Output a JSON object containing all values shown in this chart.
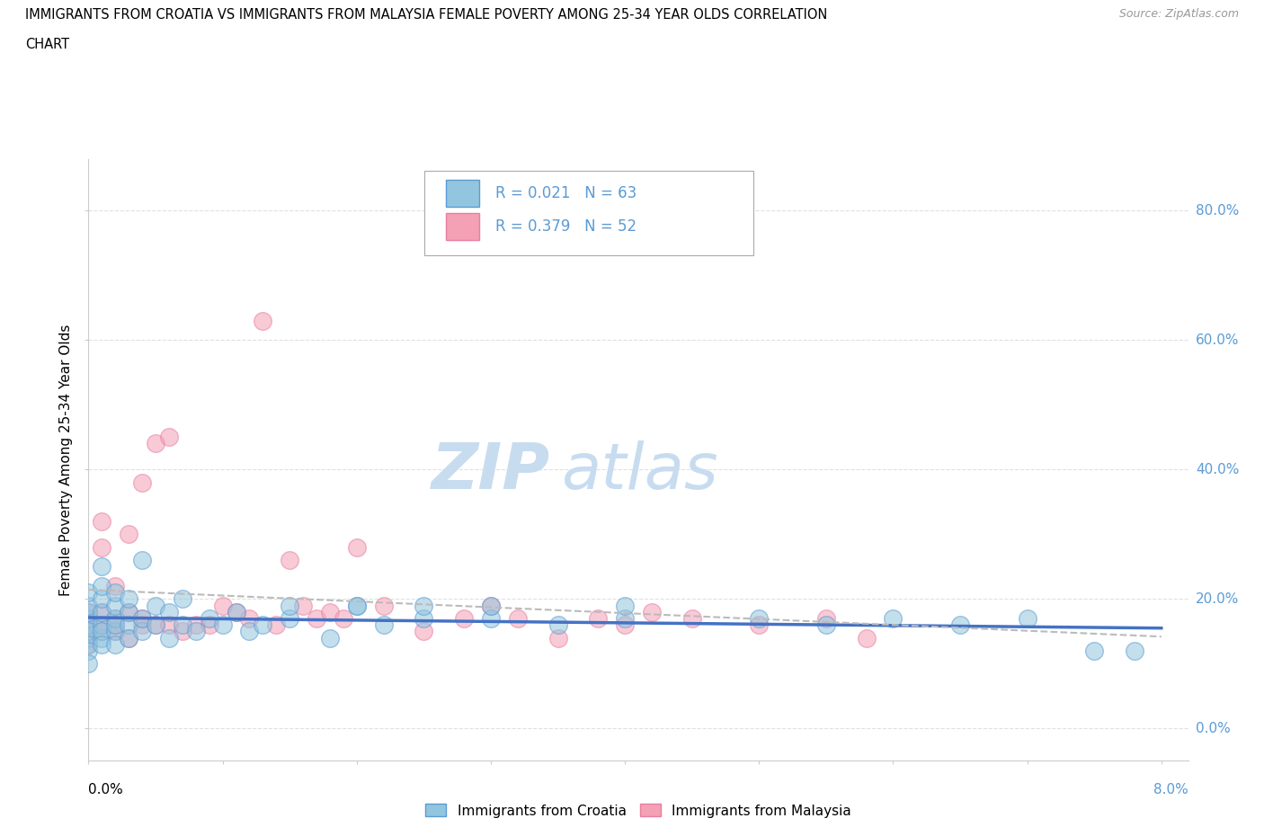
{
  "title_line1": "IMMIGRANTS FROM CROATIA VS IMMIGRANTS FROM MALAYSIA FEMALE POVERTY AMONG 25-34 YEAR OLDS CORRELATION",
  "title_line2": "CHART",
  "source": "Source: ZipAtlas.com",
  "ylabel": "Female Poverty Among 25-34 Year Olds",
  "ytick_values": [
    0.0,
    0.2,
    0.4,
    0.6,
    0.8
  ],
  "ytick_labels": [
    "0.0%",
    "20.0%",
    "40.0%",
    "60.0%",
    "80.0%"
  ],
  "xtick_values": [
    0.0,
    0.01,
    0.02,
    0.03,
    0.04,
    0.05,
    0.06,
    0.07,
    0.08
  ],
  "color_croatia": "#92C5DE",
  "color_croatia_edge": "#5B9BD5",
  "color_malaysia": "#F4A0B5",
  "color_malaysia_edge": "#E87FA0",
  "color_trend_croatia": "#4472C4",
  "color_trend_malaysia": "#E8606A",
  "color_trend_malaysia_dash": "#BBBBBB",
  "right_label_color": "#5B9BD5",
  "watermark_color": "#C8DCF0",
  "background_color": "#FFFFFF",
  "grid_color": "#E0E0E0",
  "croatia_x": [
    0.0,
    0.0,
    0.0,
    0.0,
    0.0,
    0.0,
    0.0,
    0.0,
    0.0,
    0.0,
    0.001,
    0.001,
    0.001,
    0.001,
    0.001,
    0.001,
    0.001,
    0.001,
    0.002,
    0.002,
    0.002,
    0.002,
    0.002,
    0.002,
    0.003,
    0.003,
    0.003,
    0.003,
    0.004,
    0.004,
    0.004,
    0.005,
    0.005,
    0.006,
    0.006,
    0.007,
    0.007,
    0.008,
    0.009,
    0.01,
    0.011,
    0.012,
    0.013,
    0.015,
    0.018,
    0.02,
    0.022,
    0.025,
    0.03,
    0.035,
    0.04,
    0.05,
    0.055,
    0.06,
    0.065,
    0.07,
    0.075,
    0.078,
    0.015,
    0.02,
    0.025,
    0.03,
    0.04
  ],
  "croatia_y": [
    0.14,
    0.16,
    0.17,
    0.18,
    0.15,
    0.13,
    0.12,
    0.19,
    0.21,
    0.1,
    0.14,
    0.16,
    0.18,
    0.2,
    0.15,
    0.13,
    0.22,
    0.25,
    0.15,
    0.17,
    0.16,
    0.19,
    0.13,
    0.21,
    0.16,
    0.18,
    0.14,
    0.2,
    0.15,
    0.17,
    0.26,
    0.16,
    0.19,
    0.14,
    0.18,
    0.16,
    0.2,
    0.15,
    0.17,
    0.16,
    0.18,
    0.15,
    0.16,
    0.17,
    0.14,
    0.19,
    0.16,
    0.17,
    0.17,
    0.16,
    0.17,
    0.17,
    0.16,
    0.17,
    0.16,
    0.17,
    0.12,
    0.12,
    0.19,
    0.19,
    0.19,
    0.19,
    0.19
  ],
  "malaysia_x": [
    0.0,
    0.0,
    0.0,
    0.0,
    0.0,
    0.0,
    0.001,
    0.001,
    0.001,
    0.001,
    0.001,
    0.002,
    0.002,
    0.002,
    0.002,
    0.003,
    0.003,
    0.003,
    0.004,
    0.004,
    0.004,
    0.005,
    0.005,
    0.006,
    0.006,
    0.007,
    0.008,
    0.009,
    0.01,
    0.011,
    0.012,
    0.013,
    0.014,
    0.015,
    0.016,
    0.017,
    0.018,
    0.019,
    0.02,
    0.022,
    0.025,
    0.028,
    0.03,
    0.032,
    0.035,
    0.038,
    0.04,
    0.042,
    0.045,
    0.05,
    0.055,
    0.058
  ],
  "malaysia_y": [
    0.14,
    0.15,
    0.16,
    0.17,
    0.18,
    0.13,
    0.16,
    0.18,
    0.28,
    0.32,
    0.15,
    0.15,
    0.17,
    0.22,
    0.16,
    0.14,
    0.3,
    0.18,
    0.16,
    0.38,
    0.17,
    0.44,
    0.16,
    0.16,
    0.45,
    0.15,
    0.16,
    0.16,
    0.19,
    0.18,
    0.17,
    0.63,
    0.16,
    0.26,
    0.19,
    0.17,
    0.18,
    0.17,
    0.28,
    0.19,
    0.15,
    0.17,
    0.19,
    0.17,
    0.14,
    0.17,
    0.16,
    0.18,
    0.17,
    0.16,
    0.17,
    0.14
  ]
}
